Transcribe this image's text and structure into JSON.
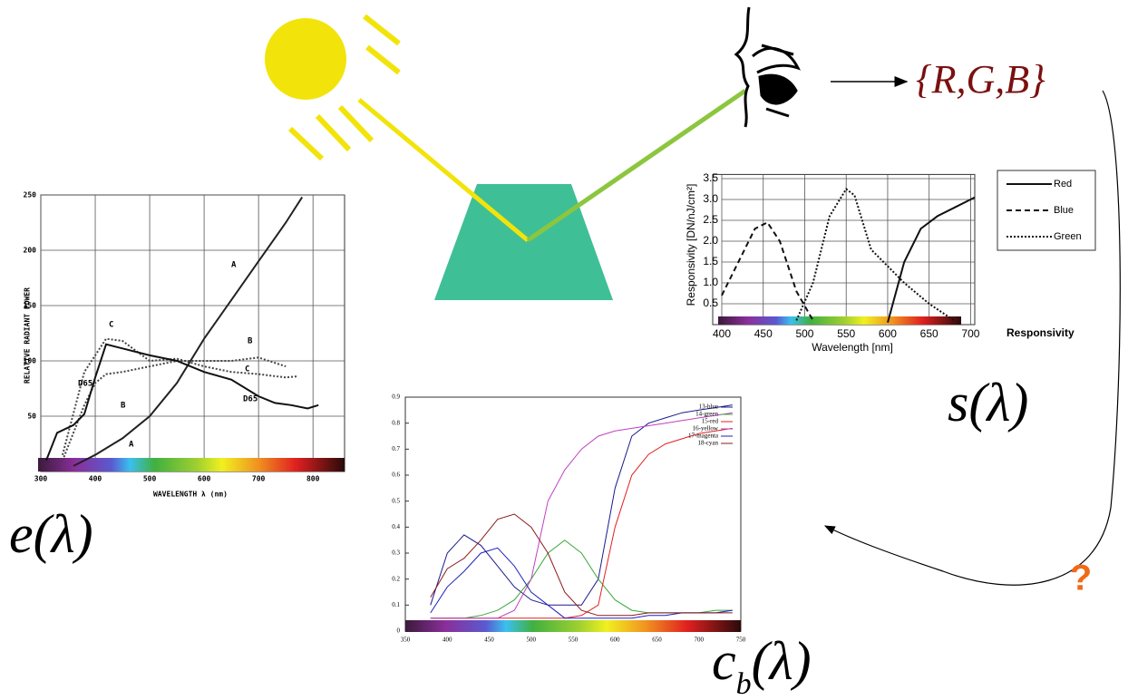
{
  "labels": {
    "rgb": "{R,G,B}",
    "e": "e(λ)",
    "s": "s(λ)",
    "c": {
      "base": "c",
      "subscript": "b",
      "argument": "(λ)"
    },
    "question": "?"
  },
  "chart_data": [
    {
      "type": "line",
      "ylabel": "RELATIVE RADIANT POWER",
      "xlabel": "WAVELENGTH λ (nm)",
      "xlim": [
        300,
        858
      ],
      "xticks": [
        300,
        400,
        500,
        600,
        700,
        800
      ],
      "ylim": [
        0,
        250
      ],
      "yticks": [
        50,
        100,
        150,
        200,
        250
      ],
      "grid": true,
      "series": [
        {
          "name": "A",
          "color": "#222222",
          "dash": "solid",
          "x": [
            360,
            400,
            450,
            500,
            550,
            600,
            650,
            700,
            750,
            780
          ],
          "values": [
            5,
            15,
            30,
            50,
            80,
            120,
            155,
            190,
            225,
            248
          ]
        },
        {
          "name": "B",
          "color": "#444444",
          "dash": "dotted",
          "x": [
            340,
            380,
            400,
            420,
            450,
            500,
            550,
            600,
            650,
            700,
            750
          ],
          "values": [
            10,
            60,
            80,
            88,
            90,
            95,
            100,
            100,
            100,
            103,
            95
          ]
        },
        {
          "name": "C",
          "color": "#444444",
          "dash": "dotted",
          "x": [
            340,
            380,
            400,
            420,
            450,
            500,
            550,
            600,
            650,
            700,
            750,
            770
          ],
          "values": [
            15,
            90,
            105,
            120,
            118,
            100,
            102,
            95,
            90,
            88,
            85,
            86
          ]
        },
        {
          "name": "D65",
          "color": "#111111",
          "dash": "solid",
          "x": [
            310,
            330,
            360,
            380,
            400,
            420,
            460,
            500,
            550,
            600,
            650,
            700,
            730,
            760,
            790,
            810
          ],
          "values": [
            10,
            35,
            42,
            52,
            85,
            115,
            110,
            105,
            100,
            90,
            83,
            68,
            62,
            60,
            57,
            60
          ]
        }
      ]
    },
    {
      "type": "line",
      "ylabel": "Responsivity [DN/nJ/cm²]",
      "xlabel": "Wavelength [nm]",
      "legend_title": "Responsivity",
      "xlim": [
        400,
        705
      ],
      "xticks": [
        400,
        450,
        500,
        550,
        600,
        650,
        700
      ],
      "ylim": [
        0,
        3.6
      ],
      "yticks": [
        0.5,
        {
          "value": 1,
          "label": "1.0"
        },
        1.5,
        {
          "value": 2,
          "label": "2.0"
        },
        2.5,
        {
          "value": 3,
          "label": "3.0"
        },
        3.5
      ],
      "grid": true,
      "series": [
        {
          "name": "Red",
          "color": "#111111",
          "dash": "solid",
          "x": [
            600,
            620,
            640,
            660,
            680,
            700,
            705
          ],
          "values": [
            0.05,
            1.5,
            2.3,
            2.6,
            2.8,
            3.0,
            3.05
          ]
        },
        {
          "name": "Blue",
          "color": "#111111",
          "dash": "dashed",
          "x": [
            400,
            420,
            440,
            455,
            470,
            490,
            510
          ],
          "values": [
            0.7,
            1.5,
            2.3,
            2.45,
            2.0,
            0.8,
            0.1
          ]
        },
        {
          "name": "Green",
          "color": "#111111",
          "dash": "dotted",
          "x": [
            490,
            510,
            530,
            550,
            560,
            580,
            600,
            620,
            650,
            680
          ],
          "values": [
            0.1,
            1.0,
            2.6,
            3.25,
            3.1,
            1.8,
            1.4,
            1.0,
            0.5,
            0.1
          ]
        }
      ]
    },
    {
      "type": "line",
      "xlim": [
        350,
        750
      ],
      "xticks": [
        350,
        400,
        450,
        500,
        550,
        600,
        650,
        700,
        750
      ],
      "ylim": [
        0,
        0.9
      ],
      "yticks": [
        0,
        0.1,
        0.2,
        0.3,
        0.4,
        0.5,
        0.6,
        0.7,
        0.8,
        0.9
      ],
      "grid": false,
      "x": [
        380,
        400,
        420,
        440,
        460,
        480,
        500,
        520,
        540,
        560,
        580,
        600,
        620,
        640,
        660,
        680,
        700,
        720,
        740
      ],
      "series": [
        {
          "name": "13-blue",
          "color": "#1a1a8c",
          "dash": "solid",
          "values": [
            0.1,
            0.3,
            0.37,
            0.33,
            0.25,
            0.17,
            0.12,
            0.1,
            0.1,
            0.1,
            0.2,
            0.55,
            0.75,
            0.8,
            0.82,
            0.84,
            0.85,
            0.86,
            0.87
          ]
        },
        {
          "name": "14-green",
          "color": "#3aa83a",
          "dash": "solid",
          "values": [
            0.05,
            0.05,
            0.05,
            0.06,
            0.08,
            0.12,
            0.2,
            0.3,
            0.35,
            0.3,
            0.2,
            0.12,
            0.08,
            0.07,
            0.07,
            0.07,
            0.07,
            0.08,
            0.08
          ]
        },
        {
          "name": "15-red",
          "color": "#e02020",
          "dash": "solid",
          "values": [
            0.05,
            0.05,
            0.05,
            0.05,
            0.05,
            0.05,
            0.05,
            0.05,
            0.05,
            0.06,
            0.1,
            0.4,
            0.6,
            0.68,
            0.72,
            0.74,
            0.76,
            0.77,
            0.78
          ]
        },
        {
          "name": "16-yellow",
          "color": "#c040c0",
          "dash": "solid",
          "values": [
            0.05,
            0.05,
            0.05,
            0.05,
            0.05,
            0.08,
            0.2,
            0.5,
            0.62,
            0.7,
            0.75,
            0.77,
            0.78,
            0.79,
            0.8,
            0.81,
            0.82,
            0.83,
            0.84
          ]
        },
        {
          "name": "17-magenta",
          "color": "#2020c0",
          "dash": "solid",
          "values": [
            0.07,
            0.17,
            0.23,
            0.3,
            0.32,
            0.25,
            0.15,
            0.1,
            0.05,
            0.05,
            0.05,
            0.05,
            0.05,
            0.06,
            0.06,
            0.07,
            0.07,
            0.07,
            0.08
          ]
        },
        {
          "name": "18-cyan",
          "color": "#8b1a1a",
          "dash": "solid",
          "values": [
            0.13,
            0.24,
            0.28,
            0.35,
            0.43,
            0.45,
            0.4,
            0.3,
            0.15,
            0.08,
            0.06,
            0.06,
            0.06,
            0.07,
            0.07,
            0.07,
            0.07,
            0.07,
            0.07
          ]
        }
      ]
    }
  ]
}
